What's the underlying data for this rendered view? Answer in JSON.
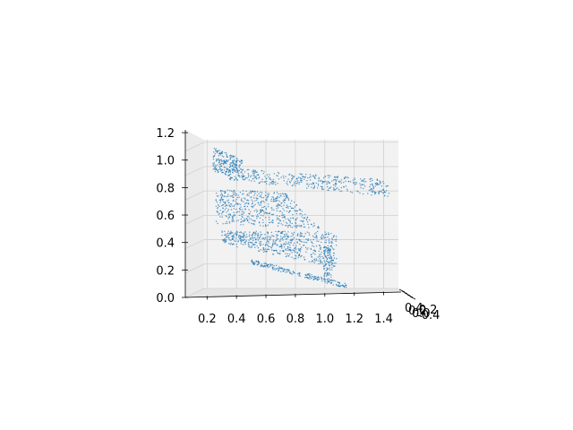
{
  "chart_data": {
    "type": "scatter",
    "projection": "3d",
    "title": "",
    "xlabel": "",
    "ylabel": "",
    "zlabel": "",
    "grid": true,
    "legend": "none",
    "marker_color": "#1f77b4",
    "pane_color": "#f2f2f2",
    "xlim": [
      0.18,
      1.5
    ],
    "zlim": [
      0.0,
      1.22
    ],
    "x_ticks": [
      0.2,
      0.4,
      0.6,
      0.8,
      1.0,
      1.2,
      1.4
    ],
    "x_tick_labels": [
      "0.2",
      "0.4",
      "0.6",
      "0.8",
      "1.0",
      "1.2",
      "1.4"
    ],
    "z_ticks": [
      0.0,
      0.2,
      0.4,
      0.6,
      0.8,
      1.0,
      1.2
    ],
    "z_tick_labels": [
      "0.0",
      "0.2",
      "0.4",
      "0.6",
      "0.8",
      "1.0",
      "1.2"
    ],
    "y_tick_labels": [
      "0.4",
      "0.2",
      "0.0",
      "-0.2",
      "-0.4"
    ],
    "shape_description": "dense 3D point cloud of a folded sheet-like surface",
    "regions": [
      {
        "name": "upper-left-cluster",
        "x": [
          0.23,
          0.45
        ],
        "z": [
          0.95,
          1.16
        ]
      },
      {
        "name": "upper-arm",
        "x": [
          0.3,
          1.45
        ],
        "z": [
          0.8,
          1.0
        ]
      },
      {
        "name": "middle-band",
        "x": [
          0.25,
          1.05
        ],
        "z": [
          0.52,
          0.82
        ]
      },
      {
        "name": "lower-body",
        "x": [
          0.25,
          1.1
        ],
        "z": [
          0.03,
          0.46
        ]
      },
      {
        "name": "bottom-edge",
        "x": [
          0.65,
          1.15
        ],
        "z": [
          0.0,
          0.1
        ]
      }
    ]
  }
}
